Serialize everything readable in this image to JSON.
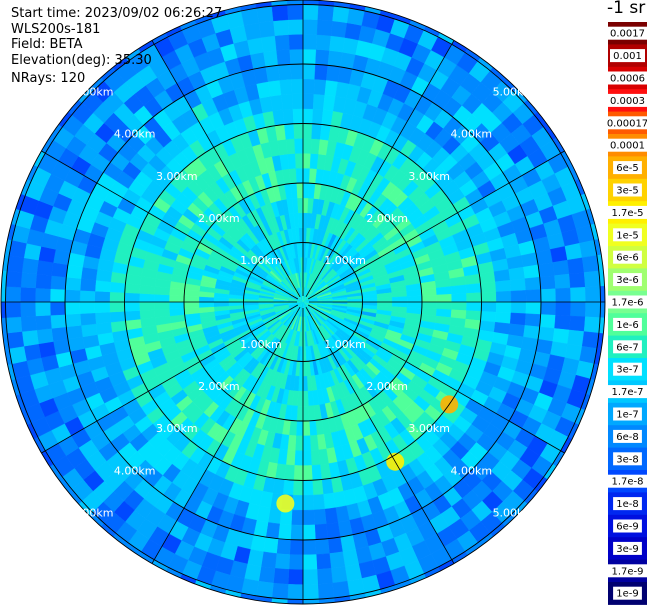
{
  "info": {
    "start_time": "Start time: 2023/09/02 06:26:27",
    "instrument": "WLS200s-181",
    "field": "Field: BETA",
    "elevation": "Elevation(deg): 35.30",
    "nrays": "NRays: 120"
  },
  "colorbar": {
    "unit": "-1 sr",
    "labels": [
      "0.0017",
      "0.001",
      "0.0006",
      "0.0003",
      "0.00017",
      "0.0001",
      "6e-5",
      "3e-5",
      "1.7e-5",
      "1e-5",
      "6e-6",
      "3e-6",
      "1.7e-6",
      "1e-6",
      "6e-7",
      "3e-7",
      "1.7e-7",
      "1e-7",
      "6e-8",
      "3e-8",
      "1.7e-8",
      "1e-8",
      "6e-9",
      "3e-9",
      "1.7e-9",
      "1e-9"
    ],
    "colors": [
      "#7a0000",
      "#b00000",
      "#d80000",
      "#ff1010",
      "#ff5a00",
      "#ff8c00",
      "#ffb000",
      "#ffd200",
      "#fff000",
      "#f0ff20",
      "#d0ff40",
      "#a0ff70",
      "#78ff90",
      "#50ff9a",
      "#20f0c0",
      "#00e0ff",
      "#00c8ff",
      "#00a8ff",
      "#0088ff",
      "#0068ff",
      "#0048ff",
      "#0028f0",
      "#0010e0",
      "#0000c8",
      "#0000a0",
      "#000070"
    ]
  },
  "chart_data": {
    "type": "heatmap",
    "projection": "polar PPI",
    "field": "BETA",
    "elevation_deg": 35.3,
    "n_rays": 120,
    "range_ring_labels": [
      "1.00km",
      "2.00km",
      "3.00km",
      "4.00km",
      "5.00km"
    ],
    "range_ring_km": [
      1,
      2,
      3,
      4,
      5
    ],
    "gate_profile": [
      {
        "range_km": 0.5,
        "beta_approx": 3e-07
      },
      {
        "range_km": 1.0,
        "beta_approx": 2e-07
      },
      {
        "range_km": 2.0,
        "beta_approx": 4e-07
      },
      {
        "range_km": 3.0,
        "beta_approx": 3e-07
      },
      {
        "range_km": 3.5,
        "beta_approx": 1e-07
      },
      {
        "range_km": 4.5,
        "beta_approx": 5e-08
      },
      {
        "range_km": 5.3,
        "beta_approx": 4e-08
      }
    ],
    "features": [
      {
        "label": "aerosol spot",
        "azimuth_deg": 125,
        "range_km": 3.0,
        "beta_approx": 3e-05
      },
      {
        "label": "aerosol spot",
        "azimuth_deg": 150,
        "range_km": 3.1,
        "beta_approx": 1e-05
      },
      {
        "label": "aerosol band",
        "azimuth_deg": 185,
        "range_km": 3.4,
        "beta_approx": 6e-06
      }
    ],
    "colorscale": "log, 1e-9 to 0.0017 sr-1"
  }
}
